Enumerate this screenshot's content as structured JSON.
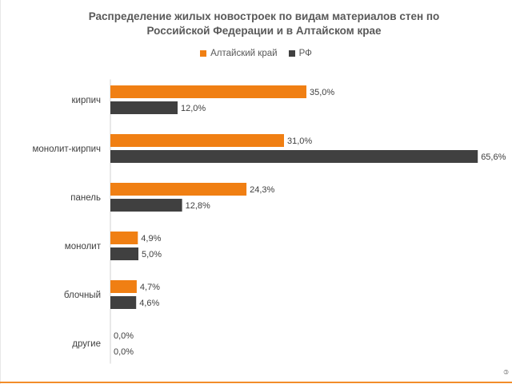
{
  "chart_data": {
    "type": "bar",
    "orientation": "horizontal",
    "title_line1": "Распределение жилых новостроек по видам материалов стен по",
    "title_line2": "Российской Федерации и в Алтайском крае",
    "categories": [
      "кирпич",
      "монолит-кирпич",
      "панель",
      "монолит",
      "блочный",
      "другие"
    ],
    "series": [
      {
        "name": "Алтайский край",
        "color": "#F07F13",
        "values": [
          35.0,
          31.0,
          24.3,
          4.9,
          4.7,
          0.0
        ],
        "labels": [
          "35,0%",
          "31,0%",
          "24,3%",
          "4,9%",
          "4,7%",
          "0,0%"
        ]
      },
      {
        "name": "РФ",
        "color": "#404040",
        "values": [
          12.0,
          65.6,
          12.8,
          5.0,
          4.6,
          0.0
        ],
        "labels": [
          "12,0%",
          "65,6%",
          "12,8%",
          "5,0%",
          "4,6%",
          "0,0%"
        ]
      }
    ],
    "legend_position": "top-center",
    "grid": false
  }
}
